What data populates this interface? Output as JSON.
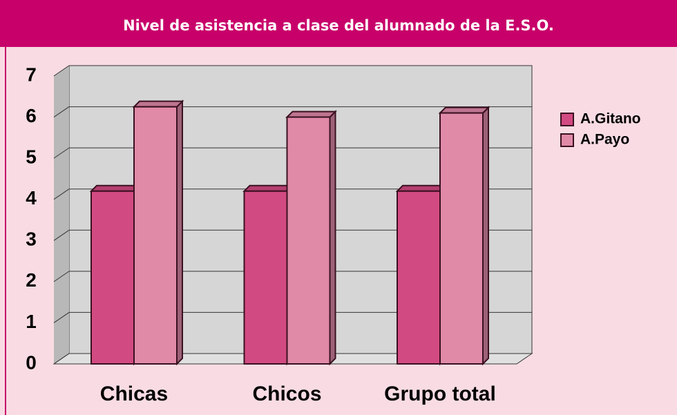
{
  "chart_data": {
    "type": "bar",
    "title": "Nivel de asistencia a clase del alumnado de la E.S.O.",
    "categories": [
      "Chicas",
      "Chicos",
      "Grupo total"
    ],
    "series": [
      {
        "name": "A.Gitano",
        "color": "#d24a82",
        "values": [
          4.2,
          4.2,
          4.2
        ]
      },
      {
        "name": "A.Payo",
        "color": "#e08aa8",
        "values": [
          6.25,
          6.0,
          6.1
        ]
      }
    ],
    "ylim": [
      0,
      7
    ],
    "yticks": [
      0,
      1,
      2,
      3,
      4,
      5,
      6,
      7
    ],
    "grid": true,
    "legend": "right"
  }
}
